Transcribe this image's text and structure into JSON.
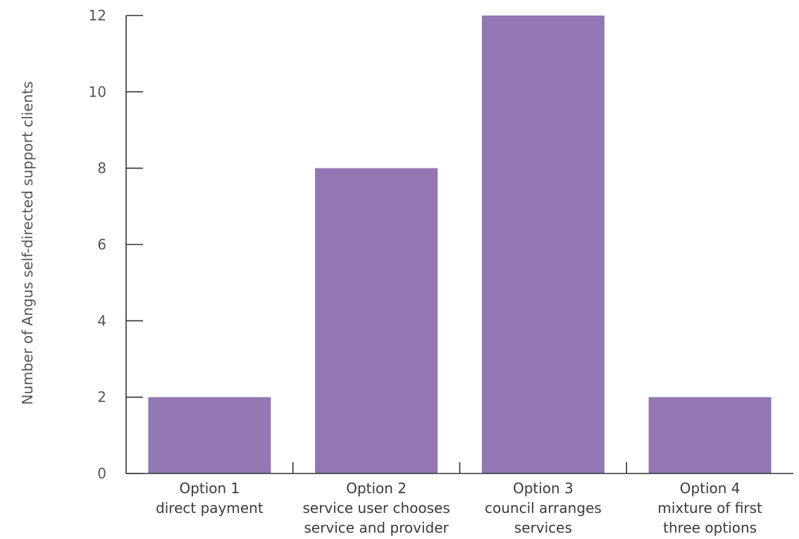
{
  "chart_data": {
    "type": "bar",
    "categories": [
      [
        "Option 1",
        "direct payment"
      ],
      [
        "Option 2",
        "service user chooses",
        "service and provider"
      ],
      [
        "Option 3",
        "council arranges",
        "services"
      ],
      [
        "Option 4",
        "mixture of first",
        "three options"
      ]
    ],
    "values": [
      2,
      8,
      12,
      2
    ],
    "ylabel": "Number of Angus self-directed support clients",
    "xlabel": "",
    "title": "",
    "ylim": [
      0,
      12
    ],
    "yticks": [
      0,
      2,
      4,
      6,
      8,
      10,
      12
    ],
    "grid": false,
    "legend": "none",
    "bar_color": "#9277b4",
    "axis_color": "#333333"
  }
}
